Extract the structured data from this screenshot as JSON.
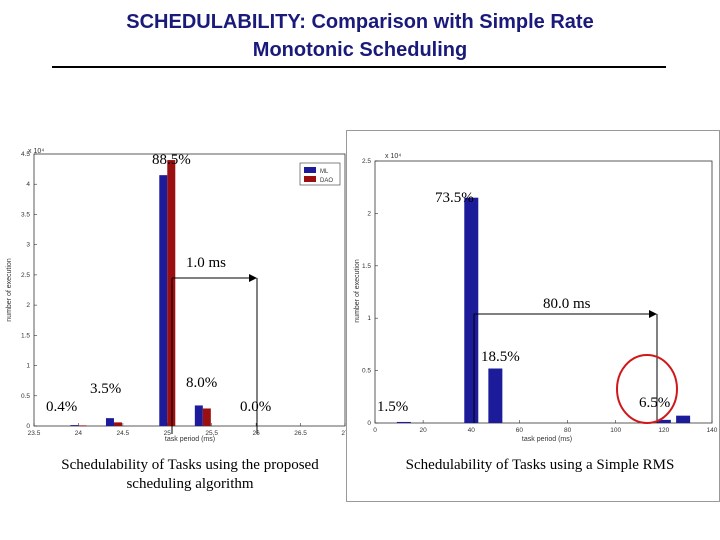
{
  "page": {
    "title_line1": "SCHEDULABILITY:  Comparison with Simple Rate",
    "title_line2": "Monotonic Scheduling"
  },
  "captions": {
    "left": "Schedulability of Tasks using the proposed scheduling algorithm",
    "left_line1": "Schedulability of Tasks using the proposed",
    "left_line2": "scheduling algorithm",
    "right": "Schedulability of Tasks using a Simple RMS"
  },
  "colors": {
    "series_blue": "#1c1c9a",
    "series_red": "#9a1010",
    "highlight_circle": "#d01818"
  },
  "chart_data": [
    {
      "type": "bar",
      "exponent_label": "x 10⁴",
      "xlabel": "task period (ms)",
      "ylabel": "number of execution",
      "xlim": [
        23.5,
        27
      ],
      "ylim": [
        0,
        45000
      ],
      "x_ticks": [
        "23.5",
        "24",
        "24.5",
        "25",
        "25.5",
        "26",
        "26.5",
        "27"
      ],
      "y_ticks": [
        "0",
        "0.5",
        "1",
        "1.5",
        "2",
        "2.5",
        "3",
        "3.5",
        "4",
        "4.5"
      ],
      "legend": {
        "placement": "top-right",
        "entries": [
          "ML",
          "DAO"
        ]
      },
      "series": [
        {
          "name": "ML",
          "x": [
            24,
            24.4,
            25,
            25.4
          ],
          "values": [
            150,
            1300,
            41500,
            3400
          ]
        },
        {
          "name": "DAO",
          "x": [
            24,
            24.4,
            25,
            25.4
          ],
          "values": [
            100,
            600,
            44000,
            2900
          ]
        }
      ],
      "annotations": {
        "a1": "0.4%",
        "a2": "3.5%",
        "a3": "88.5%",
        "a4": "8.0%",
        "a5": "0.0%",
        "interval": "1.0 ms"
      }
    },
    {
      "type": "bar",
      "exponent_label": "x 10⁴",
      "xlabel": "task period (ms)",
      "ylabel": "number of execution",
      "xlim": [
        0,
        140
      ],
      "ylim": [
        0,
        25000
      ],
      "x_ticks": [
        "0",
        "20",
        "40",
        "60",
        "80",
        "100",
        "120",
        "140"
      ],
      "y_ticks": [
        "0",
        "0.5",
        "1",
        "1.5",
        "2",
        "2.5"
      ],
      "series": [
        {
          "x": [
            12,
            40,
            50,
            120,
            128
          ],
          "values": [
            100,
            21500,
            5200,
            300,
            700
          ]
        }
      ],
      "annotations": {
        "a1": "1.5%",
        "a2": "73.5%",
        "a3": "18.5%",
        "a4": "6.5%",
        "interval": "80.0 ms"
      }
    }
  ]
}
